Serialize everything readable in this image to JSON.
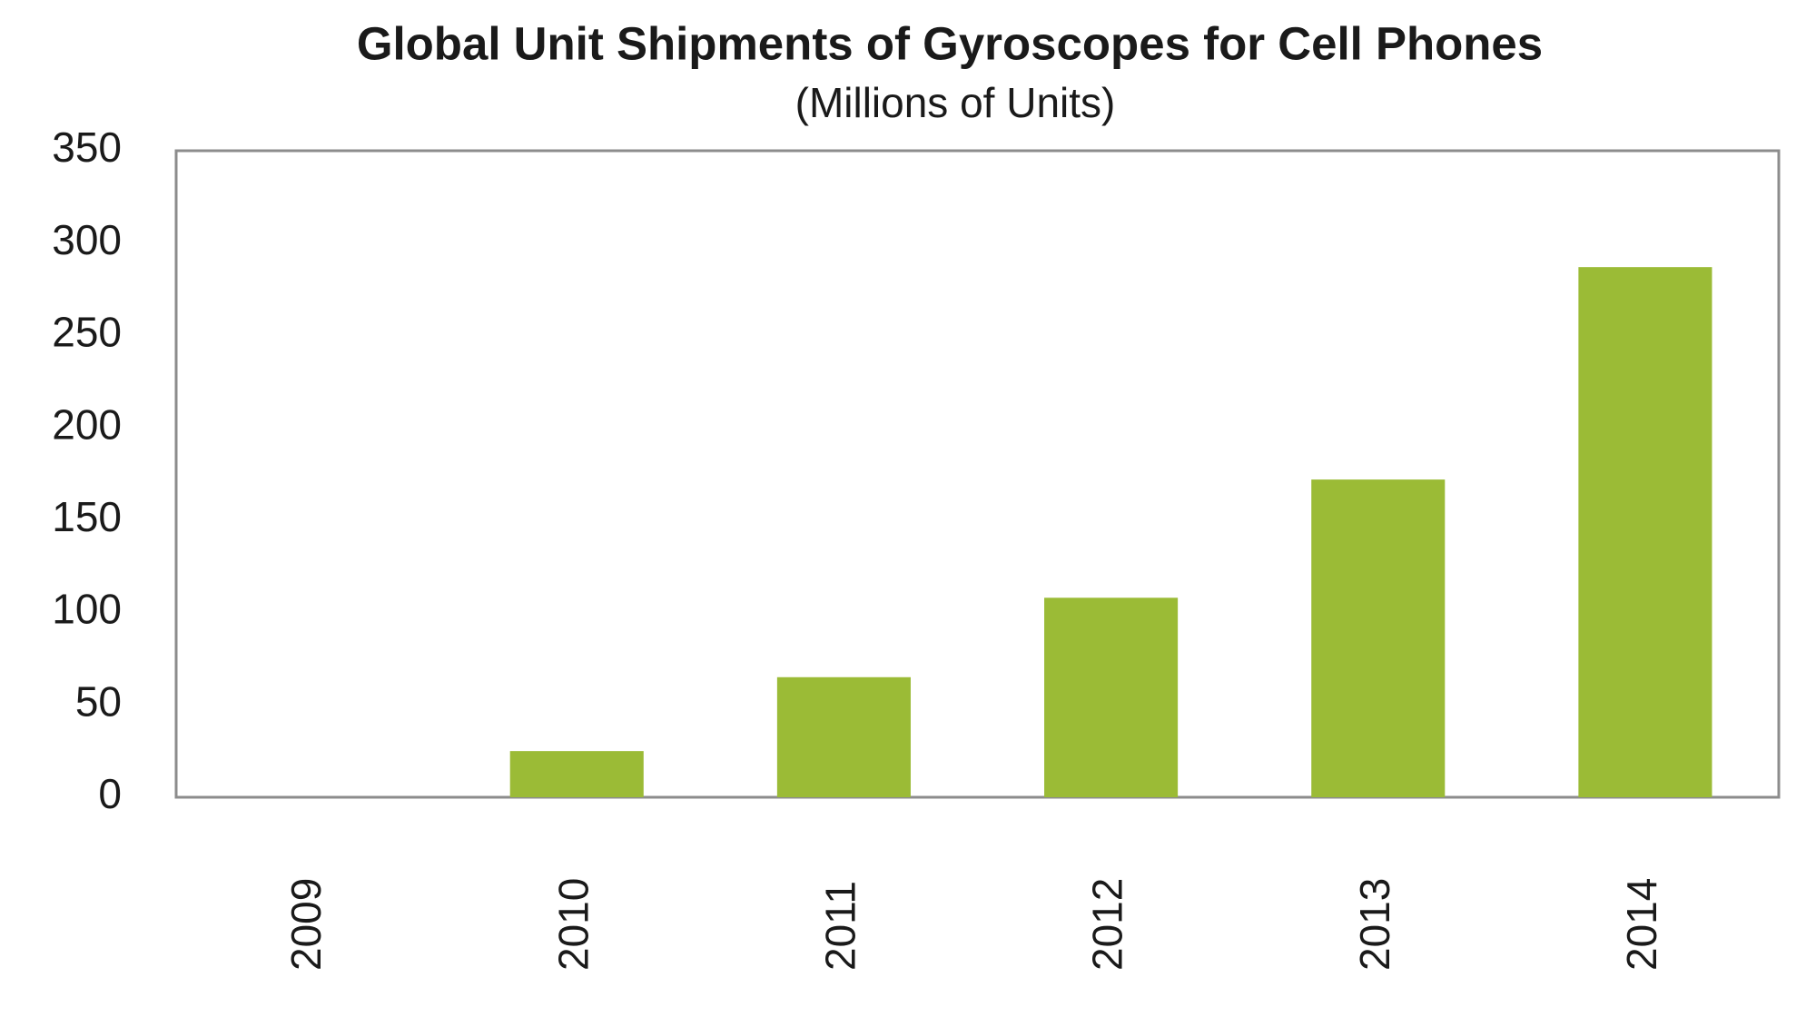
{
  "chart_data": {
    "type": "bar",
    "title": "Global Unit Shipments of Gyroscopes for Cell Phones",
    "subtitle": "(Millions of Units)",
    "categories": [
      "2009",
      "2010",
      "2011",
      "2012",
      "2013",
      "2014"
    ],
    "values": [
      0,
      25,
      65,
      108,
      172,
      287
    ],
    "color": "#9bbb36",
    "ylim": [
      0,
      350
    ],
    "yticks": [
      0,
      50,
      100,
      150,
      200,
      250,
      300,
      350
    ],
    "grid": false
  }
}
